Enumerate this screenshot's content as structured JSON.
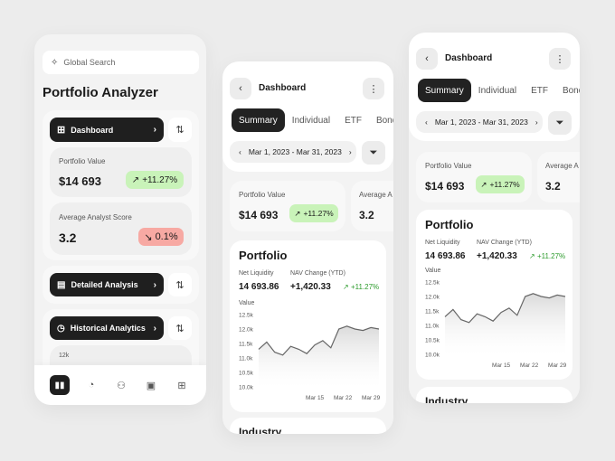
{
  "colors": {
    "accent_dark": "#1f1f1f",
    "positive_bg": "#c9f3b9",
    "negative_bg": "#f7a9a3",
    "positive_text": "#2e9c2e"
  },
  "left": {
    "search_placeholder": "Global Search",
    "title": "Portfolio Analyzer",
    "dashboard_label": "Dashboard",
    "portfolio_value_label": "Portfolio Value",
    "portfolio_value": "$14 693",
    "portfolio_change": "+11.27%",
    "analyst_label": "Average Analyst Score",
    "analyst_value": "3.2",
    "analyst_change": "0.1%",
    "detailed_label": "Detailed Analysis",
    "historical_label": "Historical Analytics",
    "mini_tick": "12k",
    "nav_icons": [
      "bars-chart-icon",
      "pie-chart-icon",
      "people-icon",
      "document-icon",
      "grid-icon"
    ]
  },
  "middle": {
    "title": "Dashboard",
    "tabs": [
      "Summary",
      "Individual",
      "ETF",
      "Bond"
    ],
    "date_range": "Mar 1, 2023 - Mar 31, 2023",
    "portfolio_value_label": "Portfolio Value",
    "portfolio_value": "$14 693",
    "portfolio_change": "+11.27%",
    "avg_label": "Average A",
    "avg_value": "3.2",
    "chart_title": "Portfolio",
    "net_liquidity_label": "Net Liquidity",
    "net_liquidity": "14 693.86",
    "nav_change_label": "NAV Change (YTD)",
    "nav_change": "+1,420.33",
    "nav_pct": "+11.27%",
    "value_label": "Value",
    "yticks": [
      "12.5k",
      "12.0k",
      "11.5k",
      "11.0k",
      "10.5k",
      "10.0k"
    ],
    "xticks": [
      "Mar 15",
      "Mar 22",
      "Mar 29"
    ],
    "next_section": "Industry"
  },
  "right": {
    "title": "Dashboard",
    "tabs": [
      "Summary",
      "Individual",
      "ETF",
      "Bond"
    ],
    "date_range": "Mar 1, 2023 - Mar 31, 2023",
    "portfolio_value_label": "Portfolio Value",
    "portfolio_value": "$14 693",
    "portfolio_change": "+11.27%",
    "avg_label": "Average A",
    "avg_value": "3.2",
    "chart_title": "Portfolio",
    "net_liquidity_label": "Net Liquidity",
    "net_liquidity": "14 693.86",
    "nav_change_label": "NAV Change (YTD)",
    "nav_change": "+1,420.33",
    "nav_pct": "+11.27%",
    "value_label": "Value",
    "yticks": [
      "12.5k",
      "12.0k",
      "11.5k",
      "11.0k",
      "10.5k",
      "10.0k"
    ],
    "xticks": [
      "Mar 15",
      "Mar 22",
      "Mar 29"
    ],
    "next_section": "Industry"
  },
  "chart_series": {
    "x_days": [
      1,
      3,
      5,
      7,
      9,
      11,
      13,
      15,
      17,
      19,
      21,
      23,
      25,
      27,
      29,
      31
    ],
    "y_values": [
      11.3,
      11.55,
      11.2,
      11.1,
      11.4,
      11.3,
      11.15,
      11.45,
      11.6,
      11.35,
      12.0,
      12.1,
      12.0,
      11.95,
      12.05,
      12.0
    ]
  }
}
